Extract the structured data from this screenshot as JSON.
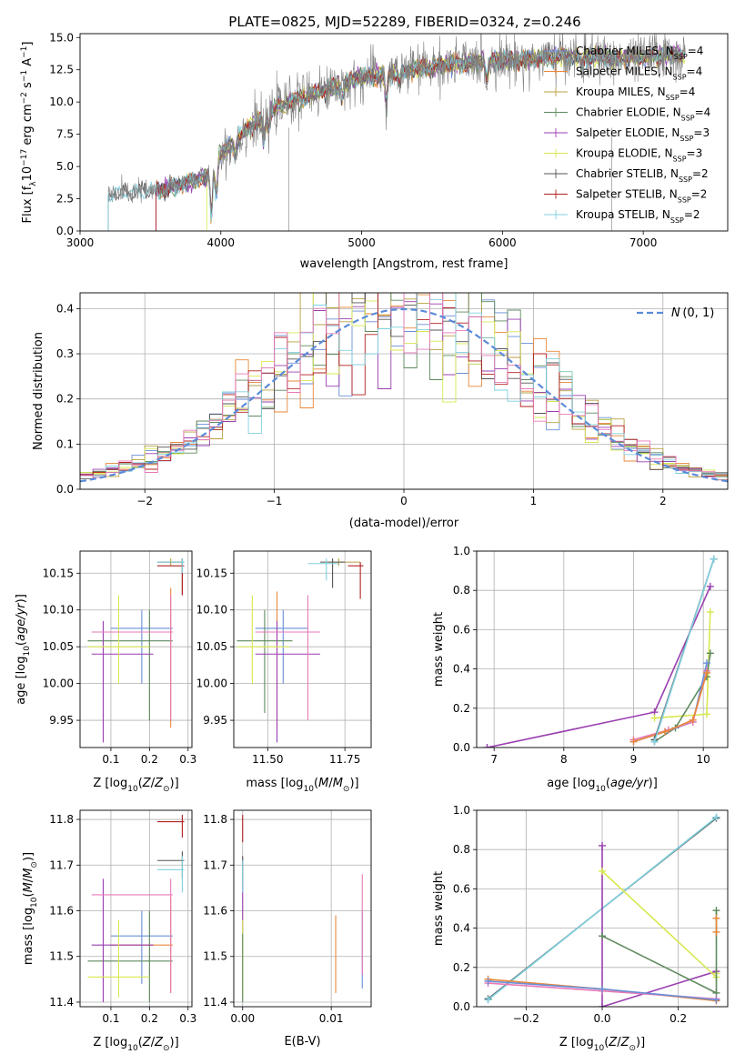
{
  "figure": {
    "title": "PLATE=0825, MJD=52289, FIBERID=0324, z=0.246"
  },
  "colors": {
    "Chabrier MILES": "#6a8fd8",
    "Salpeter MILES": "#e8883a",
    "Kroupa MILES": "#b8a040",
    "Chabrier ELODIE": "#5e8a5e",
    "Salpeter ELODIE": "#9a3fb0",
    "Kroupa ELODIE": "#d8e850",
    "Chabrier STELIB": "#555555",
    "Salpeter STELIB": "#b22020",
    "Kroupa STELIB": "#80d0e0",
    "pink": "#e87ab8",
    "normal": "#5b8bd8"
  },
  "chart_data": [
    {
      "id": "spectrum",
      "type": "line",
      "title": "PLATE=0825, MJD=52289, FIBERID=0324, z=0.246",
      "xlabel": "wavelength [Angstrom, rest frame]",
      "ylabel": "Flux [fλ10⁻¹⁷ erg cm⁻² s⁻¹ A⁻¹]",
      "xlim": [
        3000,
        7600
      ],
      "ylim": [
        0,
        15.3
      ],
      "xticks": [
        3000,
        4000,
        5000,
        6000,
        7000
      ],
      "yticks": [
        0.0,
        2.5,
        5.0,
        7.5,
        10.0,
        12.5,
        15.0
      ],
      "legend_position": "right",
      "legend": [
        {
          "base": "Chabrier MILES, N",
          "sub": "SSP",
          "tail": "=4"
        },
        {
          "base": "Salpeter MILES, N",
          "sub": "SSP",
          "tail": "=4"
        },
        {
          "base": "Kroupa MILES, N",
          "sub": "SSP",
          "tail": "=4"
        },
        {
          "base": "Chabrier ELODIE, N",
          "sub": "SSP",
          "tail": "=4"
        },
        {
          "base": "Salpeter ELODIE, N",
          "sub": "SSP",
          "tail": "=3"
        },
        {
          "base": "Kroupa ELODIE, N",
          "sub": "SSP",
          "tail": "=3"
        },
        {
          "base": "Chabrier STELIB, N",
          "sub": "SSP",
          "tail": "=2"
        },
        {
          "base": "Salpeter STELIB, N",
          "sub": "SSP",
          "tail": "=2"
        },
        {
          "base": "Kroupa STELIB, N",
          "sub": "SSP",
          "tail": "=2"
        }
      ],
      "series_starts": [
        3540,
        3540,
        3540,
        3540,
        3540,
        3900,
        3200,
        3540,
        3200
      ],
      "model_continuum": {
        "x": [
          3200,
          3400,
          3600,
          3750,
          3900,
          4000,
          4200,
          4400,
          4600,
          4800,
          5000,
          5200,
          5400,
          5600,
          5800,
          6000,
          6200,
          6400,
          6600,
          6800,
          7000,
          7200,
          7300
        ],
        "y": [
          2.8,
          3.0,
          3.2,
          3.8,
          4.2,
          6.0,
          8.0,
          9.6,
          10.4,
          11.2,
          11.9,
          12.2,
          12.6,
          12.9,
          13.1,
          13.2,
          13.3,
          13.5,
          13.6,
          13.3,
          13.5,
          13.7,
          13.6
        ]
      },
      "absorption_dips": [
        {
          "x": 3933,
          "depth": 3.5
        },
        {
          "x": 3968,
          "depth": 2.5
        },
        {
          "x": 4102,
          "depth": 1.2
        },
        {
          "x": 4305,
          "depth": 1.8
        },
        {
          "x": 4340,
          "depth": 1.2
        },
        {
          "x": 4861,
          "depth": 1.0
        },
        {
          "x": 5175,
          "depth": 2.2
        },
        {
          "x": 5270,
          "depth": 0.9
        },
        {
          "x": 5890,
          "depth": 1.5
        },
        {
          "x": 6563,
          "depth": 0.8
        }
      ],
      "noise_amplitude": 0.9
    },
    {
      "id": "residuals",
      "type": "bar",
      "xlabel": "(data-model)/error",
      "ylabel": "Normed distribution",
      "xlim": [
        -2.5,
        2.5
      ],
      "ylim": [
        0,
        0.435
      ],
      "xticks": [
        -2,
        -1,
        0,
        1,
        2
      ],
      "yticks": [
        0.0,
        0.1,
        0.2,
        0.3,
        0.4
      ],
      "legend": " (0, 1)",
      "legend_symbol": "𝒩",
      "legend_position": "top-right",
      "bin_width": 0.1,
      "series_count": 10
    },
    {
      "id": "age_vs_Z",
      "type": "scatter",
      "xlabel": "Z [log₁₀(Z/Z⊙)]",
      "ylabel": "age  [log₁₀(age/yr)]",
      "xlim": [
        0.02,
        0.31
      ],
      "ylim": [
        9.913,
        10.18
      ],
      "xticks": [
        0.1,
        0.2,
        0.3
      ],
      "yticks": [
        9.95,
        10.0,
        10.05,
        10.1,
        10.15
      ],
      "points": [
        {
          "c": "Chabrier MILES",
          "x": 0.18,
          "y": 10.075,
          "x0": 0.1,
          "x1": 0.26,
          "y0": 10.0,
          "y1": 10.1
        },
        {
          "c": "Salpeter MILES",
          "x": 0.255,
          "y": 10.07,
          "x0": 0.1,
          "x1": 0.26,
          "y0": 9.94,
          "y1": 10.13
        },
        {
          "c": "Kroupa MILES",
          "x": 0.255,
          "y": 10.165,
          "x0": 0.22,
          "x1": 0.29,
          "y0": 10.16,
          "y1": 10.17
        },
        {
          "c": "Chabrier ELODIE",
          "x": 0.2,
          "y": 10.058,
          "x0": 0.04,
          "x1": 0.26,
          "y0": 9.95,
          "y1": 10.1
        },
        {
          "c": "Salpeter ELODIE",
          "x": 0.08,
          "y": 10.04,
          "x0": 0.05,
          "x1": 0.21,
          "y0": 9.92,
          "y1": 10.085
        },
        {
          "c": "Kroupa ELODIE",
          "x": 0.12,
          "y": 10.05,
          "x0": 0.04,
          "x1": 0.2,
          "y0": 10.0,
          "y1": 10.12
        },
        {
          "c": "Chabrier STELIB",
          "x": 0.285,
          "y": 10.165,
          "x0": 0.22,
          "x1": 0.29,
          "y0": 10.12,
          "y1": 10.17
        },
        {
          "c": "Salpeter STELIB",
          "x": 0.285,
          "y": 10.16,
          "x0": 0.22,
          "x1": 0.29,
          "y0": 10.12,
          "y1": 10.17
        },
        {
          "c": "Kroupa STELIB",
          "x": 0.285,
          "y": 10.165,
          "x0": 0.22,
          "x1": 0.29,
          "y0": 10.15,
          "y1": 10.17
        },
        {
          "c": "pink",
          "x": 0.255,
          "y": 10.07,
          "x0": 0.05,
          "x1": 0.26,
          "y0": 9.95,
          "y1": 10.12
        }
      ]
    },
    {
      "id": "age_vs_mass",
      "type": "scatter",
      "xlabel": "mass [log₁₀(M/M⊙)]",
      "ylabel": "",
      "xlim": [
        11.39,
        11.835
      ],
      "ylim": [
        9.913,
        10.18
      ],
      "xticks": [
        11.5,
        11.75
      ],
      "yticks": [
        9.95,
        10.0,
        10.05,
        10.1,
        10.15
      ],
      "points": [
        {
          "c": "Chabrier MILES",
          "x": 11.55,
          "y": 10.075,
          "x0": 11.46,
          "x1": 11.63,
          "y0": 10.0,
          "y1": 10.1
        },
        {
          "c": "Salpeter MILES",
          "x": 11.53,
          "y": 10.07,
          "x0": 11.46,
          "x1": 11.6,
          "y0": 9.94,
          "y1": 10.125
        },
        {
          "c": "Kroupa MILES",
          "x": 11.73,
          "y": 10.165,
          "x0": 11.7,
          "x1": 11.8,
          "y0": 10.16,
          "y1": 10.17
        },
        {
          "c": "Chabrier ELODIE",
          "x": 11.49,
          "y": 10.058,
          "x0": 11.4,
          "x1": 11.58,
          "y0": 9.96,
          "y1": 10.1
        },
        {
          "c": "Salpeter ELODIE",
          "x": 11.53,
          "y": 10.04,
          "x0": 11.46,
          "x1": 11.67,
          "y0": 9.92,
          "y1": 10.085
        },
        {
          "c": "Kroupa ELODIE",
          "x": 11.45,
          "y": 10.05,
          "x0": 11.4,
          "x1": 11.57,
          "y0": 10.0,
          "y1": 10.12
        },
        {
          "c": "Chabrier STELIB",
          "x": 11.71,
          "y": 10.165,
          "x0": 11.67,
          "x1": 11.75,
          "y0": 10.13,
          "y1": 10.17
        },
        {
          "c": "Salpeter STELIB",
          "x": 11.8,
          "y": 10.16,
          "x0": 11.76,
          "x1": 11.81,
          "y0": 10.115,
          "y1": 10.165
        },
        {
          "c": "Kroupa STELIB",
          "x": 11.69,
          "y": 10.163,
          "x0": 11.63,
          "x1": 11.73,
          "y0": 10.14,
          "y1": 10.17
        },
        {
          "c": "pink",
          "x": 11.63,
          "y": 10.07,
          "x0": 11.46,
          "x1": 11.67,
          "y0": 9.95,
          "y1": 10.12
        }
      ]
    },
    {
      "id": "weight_vs_age",
      "type": "line",
      "xlabel": "age  [log₁₀(age/yr)]",
      "ylabel": "mass weight",
      "xlim": [
        6.75,
        10.35
      ],
      "ylim": [
        0,
        1.0
      ],
      "xticks": [
        7,
        8,
        9,
        10
      ],
      "yticks": [
        0.0,
        0.2,
        0.4,
        0.6,
        0.8,
        1.0
      ],
      "series": [
        {
          "c": "Salpeter ELODIE",
          "x": [
            6.9,
            9.3,
            10.1
          ],
          "y": [
            0.0,
            0.18,
            0.82
          ]
        },
        {
          "c": "Kroupa ELODIE",
          "x": [
            9.3,
            10.05,
            10.1
          ],
          "y": [
            0.15,
            0.17,
            0.69
          ]
        },
        {
          "c": "Chabrier ELODIE",
          "x": [
            9.3,
            9.6,
            10.05,
            10.1
          ],
          "y": [
            0.03,
            0.1,
            0.36,
            0.48
          ]
        },
        {
          "c": "Chabrier MILES",
          "x": [
            9.0,
            9.45,
            9.85,
            10.05
          ],
          "y": [
            0.03,
            0.08,
            0.13,
            0.43
          ]
        },
        {
          "c": "pink",
          "x": [
            9.0,
            9.5,
            9.85,
            10.05
          ],
          "y": [
            0.04,
            0.09,
            0.13,
            0.39
          ]
        },
        {
          "c": "Salpeter MILES",
          "x": [
            9.0,
            9.45,
            9.85,
            10.05
          ],
          "y": [
            0.03,
            0.08,
            0.14,
            0.38
          ]
        },
        {
          "c": "Chabrier STELIB",
          "x": [
            9.3,
            10.15
          ],
          "y": [
            0.04,
            0.96
          ]
        },
        {
          "c": "Kroupa STELIB",
          "x": [
            9.3,
            10.15
          ],
          "y": [
            0.03,
            0.96
          ]
        }
      ]
    },
    {
      "id": "mass_vs_Z",
      "type": "scatter",
      "xlabel": "Z [log₁₀(Z/Z⊙)]",
      "ylabel": "mass [log₁₀(M/M⊙)]",
      "xlim": [
        0.02,
        0.31
      ],
      "ylim": [
        11.39,
        11.82
      ],
      "xticks": [
        0.1,
        0.2,
        0.3
      ],
      "yticks": [
        11.4,
        11.5,
        11.6,
        11.7,
        11.8
      ],
      "points": [
        {
          "c": "Chabrier MILES",
          "x": 0.18,
          "y": 11.545,
          "x0": 0.1,
          "x1": 0.26,
          "y0": 11.44,
          "y1": 11.6
        },
        {
          "c": "Salpeter MILES",
          "x": 0.255,
          "y": 11.525,
          "x0": 0.1,
          "x1": 0.26,
          "y0": 11.42,
          "y1": 11.63
        },
        {
          "c": "Chabrier ELODIE",
          "x": 0.2,
          "y": 11.49,
          "x0": 0.04,
          "x1": 0.26,
          "y0": 11.4,
          "y1": 11.6
        },
        {
          "c": "Salpeter ELODIE",
          "x": 0.08,
          "y": 11.525,
          "x0": 0.05,
          "x1": 0.21,
          "y0": 11.4,
          "y1": 11.67
        },
        {
          "c": "Kroupa ELODIE",
          "x": 0.12,
          "y": 11.455,
          "x0": 0.04,
          "x1": 0.2,
          "y0": 11.41,
          "y1": 11.58
        },
        {
          "c": "Chabrier STELIB",
          "x": 0.285,
          "y": 11.71,
          "x0": 0.22,
          "x1": 0.29,
          "y0": 11.67,
          "y1": 11.73
        },
        {
          "c": "Salpeter STELIB",
          "x": 0.285,
          "y": 11.795,
          "x0": 0.22,
          "x1": 0.29,
          "y0": 11.76,
          "y1": 11.81
        },
        {
          "c": "Kroupa STELIB",
          "x": 0.285,
          "y": 11.69,
          "x0": 0.22,
          "x1": 0.29,
          "y0": 11.64,
          "y1": 11.72
        },
        {
          "c": "pink",
          "x": 0.255,
          "y": 11.635,
          "x0": 0.05,
          "x1": 0.26,
          "y0": 11.42,
          "y1": 11.67
        }
      ]
    },
    {
      "id": "mass_vs_ebv",
      "type": "scatter",
      "xlabel": "E(B-V)",
      "ylabel": "",
      "xlim": [
        -0.001,
        0.0145
      ],
      "ylim": [
        11.39,
        11.82
      ],
      "xticks": [
        0.0,
        0.01
      ],
      "yticks": [
        11.4,
        11.5,
        11.6,
        11.7,
        11.8
      ],
      "points": [
        {
          "c": "Chabrier MILES",
          "x": 0.0135,
          "y": 11.55,
          "y0": 11.43,
          "y1": 11.6
        },
        {
          "c": "Salpeter MILES",
          "x": 0.0105,
          "y": 11.52,
          "y0": 11.42,
          "y1": 11.59
        },
        {
          "c": "pink",
          "x": 0.0135,
          "y": 11.6,
          "y0": 11.46,
          "y1": 11.68
        },
        {
          "c": "Salpeter STELIB",
          "x": 0.0,
          "y": 11.8,
          "y0": 11.75,
          "y1": 11.81
        },
        {
          "c": "Chabrier STELIB",
          "x": 0.0,
          "y": 11.7,
          "y0": 11.66,
          "y1": 11.72
        },
        {
          "c": "Salpeter ELODIE",
          "x": 0.0,
          "y": 11.6,
          "y0": 11.55,
          "y1": 11.66
        },
        {
          "c": "Kroupa STELIB",
          "x": 0.0,
          "y": 11.68,
          "y0": 11.64,
          "y1": 11.71
        },
        {
          "c": "Kroupa ELODIE",
          "x": 0.0,
          "y": 11.5,
          "y0": 11.41,
          "y1": 11.58
        },
        {
          "c": "Chabrier ELODIE",
          "x": 0.0,
          "y": 11.48,
          "y0": 11.4,
          "y1": 11.55
        }
      ]
    },
    {
      "id": "weight_vs_Z",
      "type": "line",
      "xlabel": "Z [log₁₀(Z/Z⊙)]",
      "ylabel": "mass weight",
      "xlim": [
        -0.33,
        0.33
      ],
      "ylim": [
        0,
        1.0
      ],
      "xticks": [
        -0.2,
        0.0,
        0.2
      ],
      "yticks": [
        0.0,
        0.2,
        0.4,
        0.6,
        0.8,
        1.0
      ],
      "series": [
        {
          "c": "Chabrier STELIB",
          "x": [
            -0.3,
            0.3
          ],
          "y": [
            0.04,
            0.96
          ]
        },
        {
          "c": "Kroupa STELIB",
          "x": [
            -0.3,
            0.3
          ],
          "y": [
            0.035,
            0.965
          ]
        },
        {
          "c": "Salpeter ELODIE",
          "x": [
            0.0,
            0.0,
            0.3
          ],
          "y": [
            0.82,
            0.0,
            0.18
          ]
        },
        {
          "c": "Kroupa ELODIE",
          "x": [
            0.0,
            0.3,
            0.3
          ],
          "y": [
            0.69,
            0.15,
            0.17
          ]
        },
        {
          "c": "Chabrier ELODIE",
          "x": [
            0.0,
            0.3,
            0.3
          ],
          "y": [
            0.36,
            0.07,
            0.49
          ]
        },
        {
          "c": "Salpeter MILES",
          "x": [
            -0.3,
            0.0,
            0.3
          ],
          "y": [
            0.14,
            0.09,
            0.03
          ]
        },
        {
          "c": "pink",
          "x": [
            -0.3,
            0.0,
            0.3
          ],
          "y": [
            0.12,
            0.08,
            0.04
          ]
        },
        {
          "c": "Chabrier MILES",
          "x": [
            -0.3,
            0.0,
            0.3
          ],
          "y": [
            0.13,
            0.09,
            0.035
          ]
        },
        {
          "c": "Salpeter MILES",
          "x": [
            0.3,
            0.3
          ],
          "y": [
            0.38,
            0.45
          ]
        }
      ]
    }
  ]
}
